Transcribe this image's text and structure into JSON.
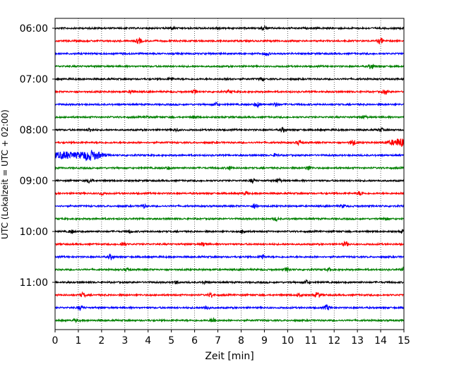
{
  "chart_data": {
    "type": "line",
    "title": "",
    "xlabel": "Zeit  [min]",
    "ylabel": "UTC (Lokalzeit = UTC + 02:00)",
    "xlim": [
      0,
      15
    ],
    "x_ticks": [
      "0",
      "1",
      "2",
      "3",
      "4",
      "5",
      "6",
      "7",
      "8",
      "9",
      "10",
      "11",
      "12",
      "13",
      "14",
      "15"
    ],
    "y_tick_labels": [
      "06:00",
      "07:00",
      "08:00",
      "09:00",
      "10:00",
      "11:00"
    ],
    "grid": {
      "vertical": true,
      "style": "dotted"
    },
    "trace_interval_minutes": 15,
    "first_trace": "06:00",
    "trace_colors": [
      "#000000",
      "#ff0000",
      "#0000ff",
      "#008000"
    ],
    "traces": [
      {
        "start": "06:00",
        "color": "#000000",
        "events": [
          [
            5,
            0.9
          ],
          [
            7,
            0.8
          ],
          [
            9,
            1.2
          ]
        ]
      },
      {
        "start": "06:15",
        "color": "#ff0000",
        "events": [
          [
            3.6,
            1.8
          ],
          [
            14,
            1.8
          ]
        ]
      },
      {
        "start": "06:30",
        "color": "#0000ff",
        "events": [
          [
            9.1,
            1.1
          ]
        ]
      },
      {
        "start": "06:45",
        "color": "#008000",
        "events": [
          [
            13.6,
            1.6
          ]
        ]
      },
      {
        "start": "07:00",
        "color": "#000000",
        "events": [
          [
            5,
            0.8
          ],
          [
            7.5,
            0.8
          ],
          [
            8.9,
            1.0
          ]
        ]
      },
      {
        "start": "07:15",
        "color": "#ff0000",
        "events": [
          [
            3.3,
            1.0
          ],
          [
            6,
            1.1
          ],
          [
            7.5,
            0.8
          ],
          [
            14.2,
            1.2
          ]
        ]
      },
      {
        "start": "07:30",
        "color": "#0000ff",
        "events": [
          [
            6.9,
            1.0
          ],
          [
            8.7,
            1.4
          ],
          [
            9.5,
            1.0
          ]
        ]
      },
      {
        "start": "07:45",
        "color": "#008000",
        "events": [
          [
            4.0,
            0.7
          ],
          [
            6,
            0.8
          ],
          [
            13.3,
            0.9
          ]
        ]
      },
      {
        "start": "08:00",
        "color": "#000000",
        "events": [
          [
            1.5,
            1.2
          ],
          [
            5.2,
            0.9
          ],
          [
            9.8,
            1.3
          ],
          [
            14,
            1.0
          ]
        ]
      },
      {
        "start": "08:15",
        "color": "#ff0000",
        "events": [
          [
            10.5,
            1.5
          ],
          [
            12.8,
            1.8
          ],
          [
            14.9,
            2.5
          ]
        ]
      },
      {
        "start": "08:30",
        "color": "#0000ff",
        "events": [
          [
            0.4,
            2.2
          ],
          [
            1.5,
            3.0
          ],
          [
            9.5,
            1.0
          ]
        ]
      },
      {
        "start": "08:45",
        "color": "#008000",
        "events": [
          [
            4.9,
            0.8
          ],
          [
            7.5,
            1.1
          ],
          [
            10.9,
            1.3
          ]
        ]
      },
      {
        "start": "09:00",
        "color": "#000000",
        "events": [
          [
            1.5,
            1.5
          ],
          [
            8.5,
            1.3
          ],
          [
            9.6,
            1.2
          ]
        ]
      },
      {
        "start": "09:15",
        "color": "#ff0000",
        "events": [
          [
            2,
            0.8
          ],
          [
            8.2,
            1.0
          ],
          [
            13.1,
            1.1
          ]
        ]
      },
      {
        "start": "09:30",
        "color": "#0000ff",
        "events": [
          [
            3.8,
            0.8
          ],
          [
            8.6,
            1.5
          ],
          [
            12.4,
            0.8
          ]
        ]
      },
      {
        "start": "09:45",
        "color": "#008000",
        "events": [
          [
            9.5,
            0.9
          ],
          [
            14.2,
            0.8
          ]
        ]
      },
      {
        "start": "10:00",
        "color": "#000000",
        "events": [
          [
            0.7,
            1.0
          ],
          [
            3.2,
            0.9
          ],
          [
            8.1,
            1.3
          ],
          [
            15,
            1.0
          ]
        ]
      },
      {
        "start": "10:15",
        "color": "#ff0000",
        "events": [
          [
            2.9,
            1.4
          ],
          [
            6.4,
            1.2
          ],
          [
            12.5,
            1.4
          ]
        ]
      },
      {
        "start": "10:30",
        "color": "#0000ff",
        "events": [
          [
            2.4,
            1.6
          ],
          [
            8.9,
            1.5
          ]
        ]
      },
      {
        "start": "10:45",
        "color": "#008000",
        "events": [
          [
            3.1,
            1.0
          ],
          [
            10,
            1.3
          ],
          [
            11.8,
            0.8
          ],
          [
            15,
            1.3
          ]
        ]
      },
      {
        "start": "11:00",
        "color": "#000000",
        "events": [
          [
            5.2,
            0.9
          ],
          [
            6.4,
            0.8
          ],
          [
            10.8,
            1.2
          ]
        ]
      },
      {
        "start": "11:15",
        "color": "#ff0000",
        "events": [
          [
            1.2,
            1.3
          ],
          [
            6.7,
            1.3
          ],
          [
            10.5,
            1.1
          ],
          [
            11.3,
            1.6
          ]
        ]
      },
      {
        "start": "11:30",
        "color": "#0000ff",
        "events": [
          [
            1.1,
            1.5
          ],
          [
            6.5,
            1.3
          ],
          [
            11.7,
            1.6
          ]
        ]
      },
      {
        "start": "11:45",
        "color": "#008000",
        "events": [
          [
            0.9,
            0.9
          ],
          [
            6.8,
            1.6
          ]
        ]
      }
    ]
  }
}
